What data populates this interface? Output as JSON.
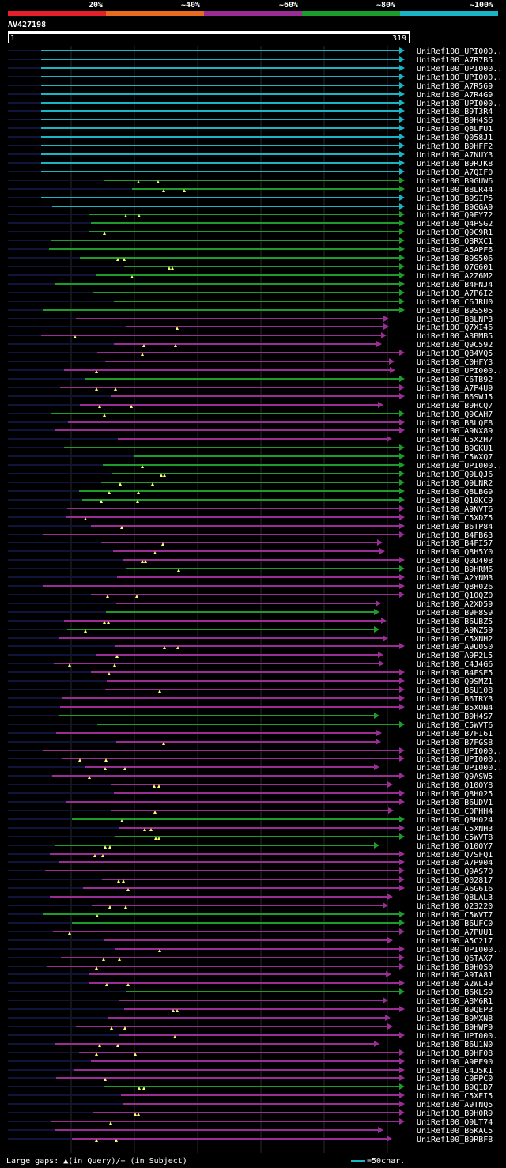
{
  "legend": [
    {
      "label": "20%",
      "color": "#e5202b"
    },
    {
      "label": "~40%",
      "color": "#e86b1f"
    },
    {
      "label": "~60%",
      "color": "#9a2d95"
    },
    {
      "label": "~80%",
      "color": "#1e9c2b"
    },
    {
      "label": "~100%",
      "color": "#18b5c6"
    }
  ],
  "query": {
    "id": "AV427198",
    "start": "1",
    "end": "319"
  },
  "hits": [
    {
      "name": "UniRef100_UPI000..",
      "c": "teal"
    },
    {
      "name": "UniRef100_A7R7B5",
      "c": "teal"
    },
    {
      "name": "UniRef100_UPI000..",
      "c": "teal"
    },
    {
      "name": "UniRef100_UPI000..",
      "c": "teal"
    },
    {
      "name": "UniRef100_A7R569",
      "c": "teal"
    },
    {
      "name": "UniRef100_A7R4G9",
      "c": "teal"
    },
    {
      "name": "UniRef100_UPI000..",
      "c": "teal"
    },
    {
      "name": "UniRef100_B9T3R4",
      "c": "teal"
    },
    {
      "name": "UniRef100_B9H4S6",
      "c": "teal"
    },
    {
      "name": "UniRef100_Q8LFU1",
      "c": "teal"
    },
    {
      "name": "UniRef100_Q058J1",
      "c": "teal"
    },
    {
      "name": "UniRef100_B9HFF2",
      "c": "teal"
    },
    {
      "name": "UniRef100_A7NUY3",
      "c": "teal"
    },
    {
      "name": "UniRef100_B9RJK8",
      "c": "teal"
    },
    {
      "name": "UniRef100_A7QIF0",
      "c": "teal"
    },
    {
      "name": "UniRef100_B9GUW6",
      "c": "green"
    },
    {
      "name": "UniRef100_B8LR44",
      "c": "green"
    },
    {
      "name": "UniRef100_B9SIP5",
      "c": "teal"
    },
    {
      "name": "UniRef100_B9GGA9",
      "c": "teal"
    },
    {
      "name": "UniRef100_Q9FY72",
      "c": "green"
    },
    {
      "name": "UniRef100_Q4PSG2",
      "c": "green"
    },
    {
      "name": "UniRef100_Q9C9R1",
      "c": "green"
    },
    {
      "name": "UniRef100_Q8RXC1",
      "c": "green"
    },
    {
      "name": "UniRef100_A5APF6",
      "c": "green"
    },
    {
      "name": "UniRef100_B9S506",
      "c": "green"
    },
    {
      "name": "UniRef100_Q7G601",
      "c": "green"
    },
    {
      "name": "UniRef100_A2Z6M2",
      "c": "green"
    },
    {
      "name": "UniRef100_B4FNJ4",
      "c": "green"
    },
    {
      "name": "UniRef100_A7P6I2",
      "c": "green"
    },
    {
      "name": "UniRef100_C6JRU0",
      "c": "green"
    },
    {
      "name": "UniRef100_B9S505",
      "c": "green"
    },
    {
      "name": "UniRef100_B8LNP3",
      "c": "purple"
    },
    {
      "name": "UniRef100_Q7XI46",
      "c": "purple"
    },
    {
      "name": "UniRef100_A3BMB5",
      "c": "purple"
    },
    {
      "name": "UniRef100_Q9C592",
      "c": "purple"
    },
    {
      "name": "UniRef100_Q84VQ5",
      "c": "purple"
    },
    {
      "name": "UniRef100_C0HFY3",
      "c": "purple"
    },
    {
      "name": "UniRef100_UPI000..",
      "c": "purple"
    },
    {
      "name": "UniRef100_C6TB92",
      "c": "green"
    },
    {
      "name": "UniRef100_A7P4U9",
      "c": "purple"
    },
    {
      "name": "UniRef100_B6SWJ5",
      "c": "purple"
    },
    {
      "name": "UniRef100_B9HCQ7",
      "c": "purple"
    },
    {
      "name": "UniRef100_Q9CAH7",
      "c": "green"
    },
    {
      "name": "UniRef100_B8LQF8",
      "c": "purple"
    },
    {
      "name": "UniRef100_A9NX89",
      "c": "purple"
    },
    {
      "name": "UniRef100_C5X2H7",
      "c": "purple"
    },
    {
      "name": "UniRef100_B9GKU1",
      "c": "green"
    },
    {
      "name": "UniRef100_C5WXQ7",
      "c": "green"
    },
    {
      "name": "UniRef100_UPI000..",
      "c": "green"
    },
    {
      "name": "UniRef100_Q9LQJ6",
      "c": "green"
    },
    {
      "name": "UniRef100_Q9LNR2",
      "c": "green"
    },
    {
      "name": "UniRef100_Q8LBG9",
      "c": "green"
    },
    {
      "name": "UniRef100_Q10KC9",
      "c": "green"
    },
    {
      "name": "UniRef100_A9NVT6",
      "c": "purple"
    },
    {
      "name": "UniRef100_C5XDZ5",
      "c": "purple"
    },
    {
      "name": "UniRef100_B6TP84",
      "c": "purple"
    },
    {
      "name": "UniRef100_B4FB63",
      "c": "purple"
    },
    {
      "name": "UniRef100_B4FI57",
      "c": "purple"
    },
    {
      "name": "UniRef100_Q8H5Y0",
      "c": "purple"
    },
    {
      "name": "UniRef100_Q0D408",
      "c": "purple"
    },
    {
      "name": "UniRef100_B9HRM6",
      "c": "green"
    },
    {
      "name": "UniRef100_A2YNM3",
      "c": "purple"
    },
    {
      "name": "UniRef100_Q8H026",
      "c": "purple"
    },
    {
      "name": "UniRef100_Q10QZ0",
      "c": "purple"
    },
    {
      "name": "UniRef100_A2XD59",
      "c": "purple"
    },
    {
      "name": "UniRef100_B9F8S9",
      "c": "green"
    },
    {
      "name": "UniRef100_B6UBZ5",
      "c": "purple"
    },
    {
      "name": "UniRef100_A9NZ59",
      "c": "green"
    },
    {
      "name": "UniRef100_C5XNH2",
      "c": "purple"
    },
    {
      "name": "UniRef100_A9U0S0",
      "c": "purple"
    },
    {
      "name": "UniRef100_A9P2L5",
      "c": "purple"
    },
    {
      "name": "UniRef100_C4J4G6",
      "c": "purple"
    },
    {
      "name": "UniRef100_B4FSE5",
      "c": "purple"
    },
    {
      "name": "UniRef100_Q9SMZ1",
      "c": "purple"
    },
    {
      "name": "UniRef100_B6U108",
      "c": "purple"
    },
    {
      "name": "UniRef100_B6TRY3",
      "c": "purple"
    },
    {
      "name": "UniRef100_B5XON4",
      "c": "purple"
    },
    {
      "name": "UniRef100_B9H4S7",
      "c": "green"
    },
    {
      "name": "UniRef100_C5WVT6",
      "c": "green"
    },
    {
      "name": "UniRef100_B7FI61",
      "c": "purple"
    },
    {
      "name": "UniRef100_B7FGS8",
      "c": "purple"
    },
    {
      "name": "UniRef100_UPI000..",
      "c": "purple"
    },
    {
      "name": "UniRef100_UPI000..",
      "c": "purple"
    },
    {
      "name": "UniRef100_UPI000..",
      "c": "purple"
    },
    {
      "name": "UniRef100_Q9ASW5",
      "c": "purple"
    },
    {
      "name": "UniRef100_Q10QY8",
      "c": "purple"
    },
    {
      "name": "UniRef100_Q8H025",
      "c": "purple"
    },
    {
      "name": "UniRef100_B6UDV1",
      "c": "purple"
    },
    {
      "name": "UniRef100_C0PHH4",
      "c": "purple"
    },
    {
      "name": "UniRef100_Q8H024",
      "c": "green"
    },
    {
      "name": "UniRef100_C5XNH3",
      "c": "purple"
    },
    {
      "name": "UniRef100_C5WVT8",
      "c": "green"
    },
    {
      "name": "UniRef100_Q10QY7",
      "c": "green"
    },
    {
      "name": "UniRef100_Q7SFQ1",
      "c": "purple"
    },
    {
      "name": "UniRef100_A7P904",
      "c": "purple"
    },
    {
      "name": "UniRef100_Q9AS70",
      "c": "purple"
    },
    {
      "name": "UniRef100_Q02817",
      "c": "purple"
    },
    {
      "name": "UniRef100_A6G616",
      "c": "purple"
    },
    {
      "name": "UniRef100_Q8LAL3",
      "c": "purple"
    },
    {
      "name": "UniRef100_Q23220",
      "c": "purple"
    },
    {
      "name": "UniRef100_C5WVT7",
      "c": "green"
    },
    {
      "name": "UniRef100_B6UFC0",
      "c": "green"
    },
    {
      "name": "UniRef100_A7PUU1",
      "c": "purple"
    },
    {
      "name": "UniRef100_A5C217",
      "c": "purple"
    },
    {
      "name": "UniRef100_UPI000..",
      "c": "purple"
    },
    {
      "name": "UniRef100_Q6TAX7",
      "c": "purple"
    },
    {
      "name": "UniRef100_B9H0S0",
      "c": "purple"
    },
    {
      "name": "UniRef100_A9TA81",
      "c": "purple"
    },
    {
      "name": "UniRef100_A2WL49",
      "c": "purple"
    },
    {
      "name": "UniRef100_B6KLS9",
      "c": "green"
    },
    {
      "name": "UniRef100_A8M6R1",
      "c": "purple"
    },
    {
      "name": "UniRef100_B9QEP3",
      "c": "purple"
    },
    {
      "name": "UniRef100_B9MXN8",
      "c": "purple"
    },
    {
      "name": "UniRef100_B9HWP9",
      "c": "purple"
    },
    {
      "name": "UniRef100_UPI000..",
      "c": "purple"
    },
    {
      "name": "UniRef100_B6U1N0",
      "c": "purple"
    },
    {
      "name": "UniRef100_B9HF08",
      "c": "purple"
    },
    {
      "name": "UniRef100_A9PE90",
      "c": "purple"
    },
    {
      "name": "UniRef100_C4J5K1",
      "c": "purple"
    },
    {
      "name": "UniRef100_C0PPC0",
      "c": "purple"
    },
    {
      "name": "UniRef100_B9Q1D7",
      "c": "green"
    },
    {
      "name": "UniRef100_C5XEI5",
      "c": "purple"
    },
    {
      "name": "UniRef100_A9TNQ5",
      "c": "purple"
    },
    {
      "name": "UniRef100_B9H0R9",
      "c": "purple"
    },
    {
      "name": "UniRef100_Q9LT74",
      "c": "purple"
    },
    {
      "name": "UniRef100_B6KAC5",
      "c": "purple"
    },
    {
      "name": "UniRef100_B9RBF8",
      "c": "purple"
    }
  ],
  "footer": {
    "large_gaps": "Large gaps: ▲(in Query)/− (in Subject)",
    "scale": "=50char."
  },
  "colors": {
    "teal": "#18b5c6",
    "green": "#1e9c2b",
    "purple": "#9a2d95",
    "dark": "#10143a",
    "gap": "#ffff66"
  }
}
